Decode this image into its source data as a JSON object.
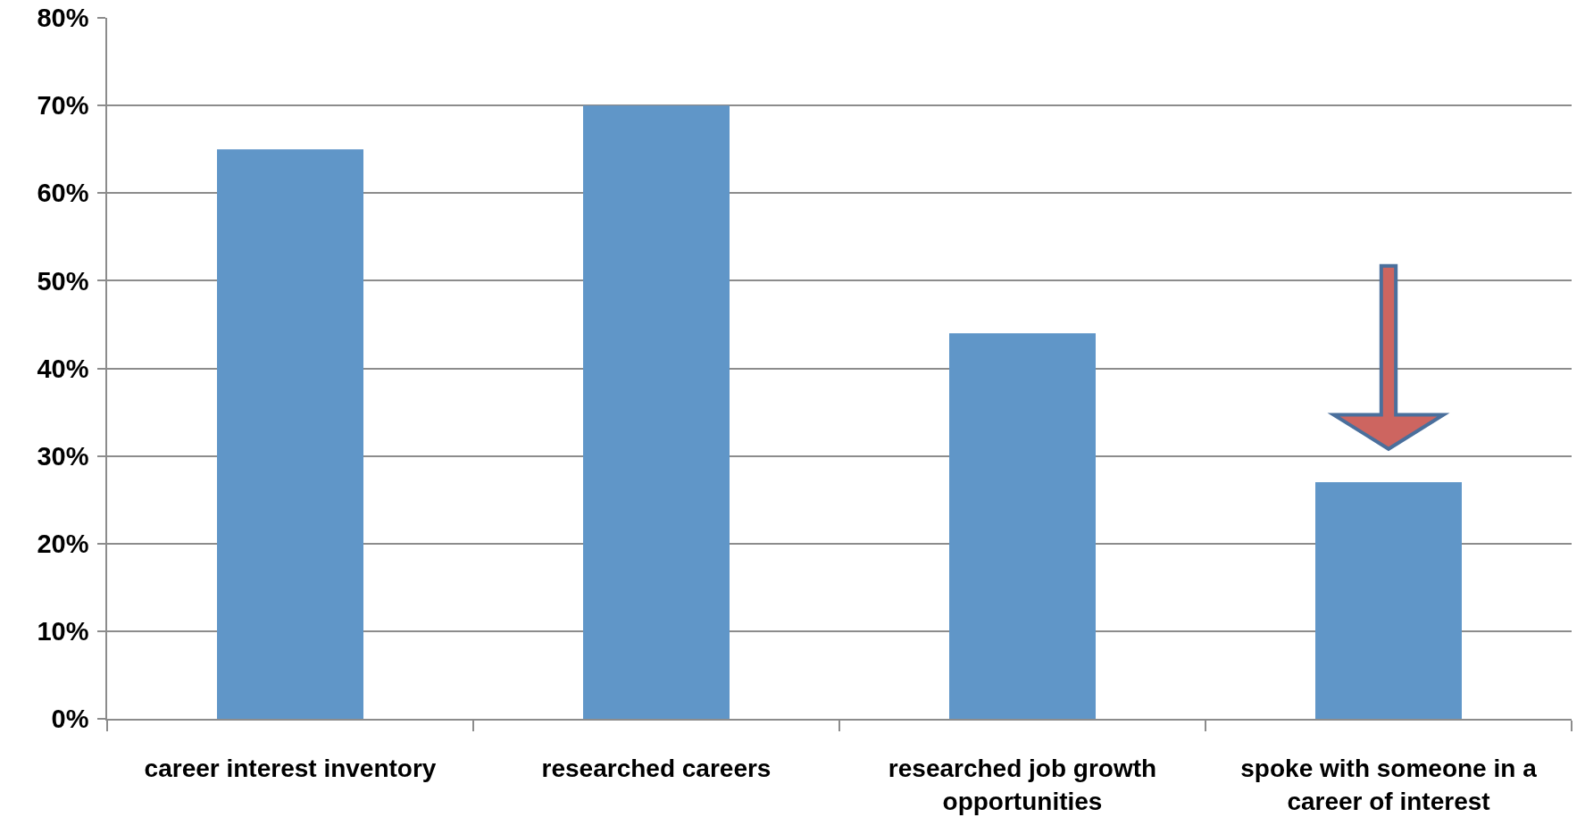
{
  "chart_data": {
    "type": "bar",
    "categories": [
      "career interest inventory",
      "researched careers",
      "researched job growth opportunities",
      "spoke with someone in a career of interest"
    ],
    "values": [
      65,
      70,
      44,
      27
    ],
    "color": "#6096c8",
    "ylim": [
      0,
      80
    ],
    "yticks": [
      {
        "value": 0,
        "label": "0%"
      },
      {
        "value": 10,
        "label": "10%"
      },
      {
        "value": 20,
        "label": "20%"
      },
      {
        "value": 30,
        "label": "30%"
      },
      {
        "value": 40,
        "label": "40%"
      },
      {
        "value": 50,
        "label": "50%"
      },
      {
        "value": 60,
        "label": "60%"
      },
      {
        "value": 70,
        "label": "70%"
      },
      {
        "value": 80,
        "label": "80%"
      }
    ],
    "grid": "y"
  }
}
